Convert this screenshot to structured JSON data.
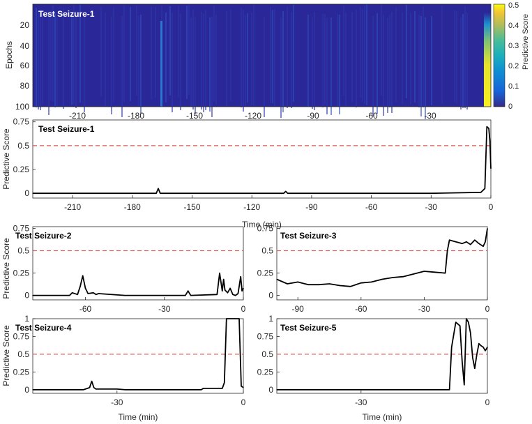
{
  "colors": {
    "line": "#000000",
    "threshold": "#e8564f",
    "heatmap_low": "#2a2899",
    "heatmap_high": "#f5e81f",
    "axis": "#262626"
  },
  "heatmap": {
    "title": "Test Seizure-1",
    "ylabel": "Epochs",
    "yticks": [
      "20",
      "40",
      "60",
      "80",
      "100"
    ],
    "xticks": [
      "-210",
      "-180",
      "-150",
      "-120",
      "-90",
      "-60",
      "-30"
    ],
    "colorbar_label": "Predictive Score",
    "colorbar_ticks": [
      "0",
      "0.1",
      "0.2",
      "0.3",
      "0.4",
      "0.5"
    ]
  },
  "shared": {
    "ylabel": "Predictive Score"
  },
  "chart_data": [
    {
      "type": "heatmap",
      "title": "Test Seizure-1",
      "ylabel": "Epochs",
      "xlim": [
        -230,
        0
      ],
      "ylim": [
        1,
        100
      ],
      "clim": [
        0,
        0.5
      ],
      "colorbar_label": "Predictive Score",
      "notable_columns": [
        {
          "x": -167,
          "value": 0.25
        },
        {
          "x": -3,
          "value": 0.45
        }
      ]
    },
    {
      "type": "line",
      "title": "Test Seizure-1",
      "xlabel": "Time (min)",
      "ylabel": "Predictive Score",
      "xlim": [
        -230,
        0
      ],
      "ylim": [
        -0.05,
        0.77
      ],
      "xticks": [
        "-210",
        "-180",
        "-150",
        "-120",
        "-90",
        "-60",
        "-30",
        "0"
      ],
      "yticks": [
        "0",
        "0.25",
        "0.5",
        "0.75"
      ],
      "threshold": 0.5,
      "x": [
        -230,
        -200,
        -168,
        -167,
        -166,
        -150,
        -120,
        -104,
        -103,
        -102,
        -90,
        -60,
        -30,
        -5,
        -3,
        -2,
        -1,
        -0.5,
        0
      ],
      "y": [
        0.0,
        0.0,
        0.0,
        0.05,
        0.0,
        0.0,
        0.0,
        0.0,
        0.02,
        0.0,
        0.0,
        0.0,
        0.0,
        0.01,
        0.05,
        0.7,
        0.68,
        0.55,
        0.26
      ]
    },
    {
      "type": "line",
      "title": "Test Seizure-2",
      "ylabel": "Predictive Score",
      "xlim": [
        -80,
        0
      ],
      "ylim": [
        -0.05,
        0.77
      ],
      "xticks": [
        "-60",
        "-30",
        "0"
      ],
      "yticks": [
        "0",
        "0.25",
        "0.5",
        "0.75"
      ],
      "threshold": 0.5,
      "x": [
        -80,
        -66,
        -65,
        -63,
        -62,
        -61,
        -60,
        -59,
        -57,
        -56,
        -55,
        -45,
        -22,
        -21,
        -20,
        -10,
        -9,
        -8,
        -7.5,
        -7,
        -6,
        -5,
        -4,
        -3,
        -2,
        -1,
        -0.5,
        0
      ],
      "y": [
        0.0,
        0.0,
        0.03,
        0.01,
        0.1,
        0.22,
        0.08,
        0.02,
        0.03,
        0.01,
        0.02,
        0.0,
        0.0,
        0.05,
        0.0,
        0.01,
        0.25,
        0.05,
        0.18,
        0.06,
        0.03,
        0.08,
        0.01,
        0.0,
        0.02,
        0.21,
        0.05,
        0.08
      ]
    },
    {
      "type": "line",
      "title": "Test Seizure-3",
      "ylabel": "Predictive Score",
      "xlim": [
        -100,
        0
      ],
      "ylim": [
        -0.05,
        0.77
      ],
      "xticks": [
        "-90",
        "-60",
        "-30",
        "0"
      ],
      "yticks": [
        "0",
        "0.25",
        "0.5",
        "0.75"
      ],
      "threshold": 0.5,
      "x": [
        -100,
        -95,
        -90,
        -85,
        -80,
        -75,
        -70,
        -65,
        -60,
        -55,
        -50,
        -45,
        -40,
        -35,
        -30,
        -25,
        -20,
        -19,
        -18,
        -15,
        -12,
        -10,
        -8,
        -6,
        -4,
        -2,
        -1,
        0
      ],
      "y": [
        0.18,
        0.13,
        0.15,
        0.12,
        0.12,
        0.13,
        0.11,
        0.1,
        0.14,
        0.15,
        0.18,
        0.2,
        0.21,
        0.24,
        0.27,
        0.26,
        0.25,
        0.5,
        0.62,
        0.6,
        0.58,
        0.6,
        0.57,
        0.62,
        0.58,
        0.55,
        0.6,
        0.75
      ]
    },
    {
      "type": "line",
      "title": "Test Seizure-4",
      "xlabel": "Time (min)",
      "ylabel": "Predictive Score",
      "xlim": [
        -50,
        0
      ],
      "ylim": [
        -0.05,
        1.0
      ],
      "xticks": [
        "-30",
        "0"
      ],
      "yticks": [
        "0",
        "0.25",
        "0.5",
        "0.75",
        "1"
      ],
      "threshold": 0.5,
      "x": [
        -50,
        -38,
        -37,
        -36.5,
        -36,
        -35.5,
        -35,
        -30,
        -28,
        -10,
        -9.5,
        -5,
        -4.5,
        -4,
        -3,
        -2,
        -1,
        -0.5,
        0
      ],
      "y": [
        0.0,
        0.0,
        0.02,
        0.03,
        0.12,
        0.03,
        0.01,
        0.01,
        0.0,
        0.0,
        0.02,
        0.02,
        0.1,
        1.0,
        1.0,
        1.0,
        1.0,
        0.05,
        0.03
      ]
    },
    {
      "type": "line",
      "title": "Test Seizure-5",
      "xlabel": "Time (min)",
      "ylabel": "Predictive Score",
      "xlim": [
        -50,
        0
      ],
      "ylim": [
        -0.05,
        1.0
      ],
      "xticks": [
        "-30",
        "0"
      ],
      "yticks": [
        "0",
        "0.25",
        "0.5",
        "0.75",
        "1"
      ],
      "threshold": 0.5,
      "x": [
        -50,
        -9,
        -8.5,
        -7.5,
        -6.5,
        -6,
        -5.5,
        -5,
        -4.5,
        -4,
        -3.5,
        -3,
        -2.5,
        -2,
        -1.5,
        -1,
        -0.5,
        0
      ],
      "y": [
        0.0,
        0.0,
        0.6,
        0.95,
        0.9,
        0.4,
        0.07,
        1.0,
        0.95,
        0.8,
        0.45,
        0.3,
        0.5,
        0.65,
        0.62,
        0.6,
        0.55,
        0.6
      ]
    }
  ]
}
